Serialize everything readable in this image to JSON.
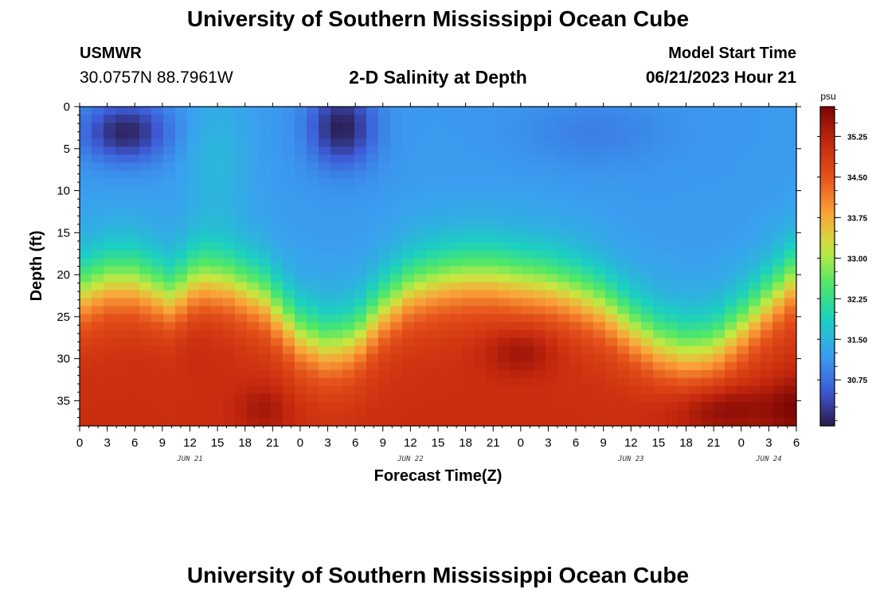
{
  "header": {
    "title": "University of Southern Mississippi Ocean Cube",
    "station": "USMWR",
    "coordinates": "30.0757N  88.7961W",
    "subtitle": "2-D Salinity at Depth",
    "model_start_label": "Model Start Time",
    "model_start_value": "06/21/2023 Hour 21"
  },
  "footer": {
    "title": "University of Southern Mississippi Ocean Cube"
  },
  "chart_data": {
    "type": "heatmap",
    "title": "2-D Salinity at Depth",
    "xlabel": "Forecast Time(Z)",
    "ylabel": "Depth (ft)",
    "x_tick_labels": [
      "0",
      "3",
      "6",
      "9",
      "12",
      "15",
      "18",
      "21",
      "0",
      "3",
      "6",
      "9",
      "12",
      "15",
      "18",
      "21",
      "0",
      "3",
      "6",
      "9",
      "12",
      "15",
      "18",
      "21",
      "0",
      "3",
      "6"
    ],
    "x_hours_from_start": [
      0,
      3,
      6,
      9,
      12,
      15,
      18,
      21,
      24,
      27,
      30,
      33,
      36,
      39,
      42,
      45,
      48,
      51,
      54,
      57,
      60,
      63,
      66,
      69,
      72,
      75,
      78
    ],
    "date_labels": [
      {
        "label": "JUN 21",
        "hour": 12
      },
      {
        "label": "JUN 22",
        "hour": 36
      },
      {
        "label": "JUN 23",
        "hour": 60
      },
      {
        "label": "JUN 24",
        "hour": 75
      }
    ],
    "y_ticks": [
      0,
      5,
      10,
      15,
      20,
      25,
      30,
      35
    ],
    "ylim": [
      0,
      38
    ],
    "xlim": [
      0,
      78
    ],
    "y_inverted": true,
    "colorbar": {
      "unit": "psu",
      "ticks": [
        "35.25",
        "34.50",
        "33.75",
        "33.00",
        "32.25",
        "31.50",
        "30.75"
      ],
      "tick_values": [
        35.25,
        34.5,
        33.75,
        33.0,
        32.25,
        31.5,
        30.75
      ],
      "range": [
        29.9,
        35.8
      ],
      "colormap": [
        "#2a1a4a",
        "#3e5bd8",
        "#3aa0f0",
        "#1bd0c0",
        "#4ee868",
        "#c8e840",
        "#fba238",
        "#e5521a",
        "#c4280d",
        "#7a0403"
      ]
    },
    "halocline_depth_ft_by_hour": [
      [
        0,
        22.0
      ],
      [
        3,
        20.5
      ],
      [
        6,
        20.5
      ],
      [
        10,
        22.5
      ],
      [
        13,
        20.0
      ],
      [
        16,
        20.5
      ],
      [
        20,
        22.5
      ],
      [
        24,
        27.0
      ],
      [
        27,
        28.5
      ],
      [
        30,
        27.5
      ],
      [
        33,
        24.0
      ],
      [
        36,
        21.5
      ],
      [
        39,
        20.5
      ],
      [
        42,
        20.0
      ],
      [
        45,
        20.0
      ],
      [
        48,
        20.5
      ],
      [
        51,
        21.0
      ],
      [
        54,
        22.0
      ],
      [
        57,
        23.5
      ],
      [
        60,
        26.0
      ],
      [
        63,
        28.0
      ],
      [
        66,
        29.0
      ],
      [
        69,
        28.5
      ],
      [
        72,
        26.0
      ],
      [
        75,
        23.0
      ],
      [
        78,
        20.0
      ]
    ],
    "salinity_extremes": {
      "surface_min_psu": 29.9,
      "deep_max_psu": 35.8
    }
  }
}
